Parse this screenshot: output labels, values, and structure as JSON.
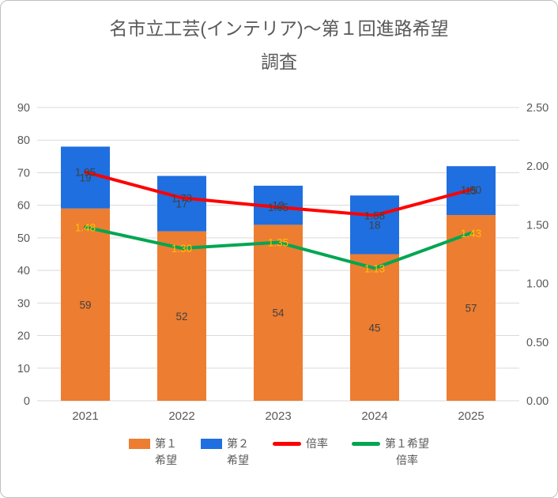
{
  "header": {
    "title_line1": "名市立工芸(インテリア)～第１回進路希望",
    "title_line2": "調査"
  },
  "colors": {
    "grid": "#D9D9D9",
    "axis_text": "#595959",
    "data_label": "#404040",
    "background": "#FFFFFF",
    "border": "#BFBFBF"
  },
  "chart_data": {
    "type": "combo",
    "title": "名市立工芸(インテリア)～第１回進路希望調査",
    "categories": [
      "2021",
      "2022",
      "2023",
      "2024",
      "2025"
    ],
    "series": [
      {
        "key": "first_choice",
        "name": "第１希望",
        "type": "bar",
        "stacked": true,
        "axis": "left",
        "color": "#ED7D31",
        "label_color": "#404040",
        "values": [
          59,
          52,
          54,
          45,
          57
        ]
      },
      {
        "key": "second_choice",
        "name": "第２希望",
        "type": "bar",
        "stacked": true,
        "axis": "left",
        "color": "#1F6FE0",
        "label_color": "#404040",
        "values": [
          19,
          17,
          12,
          18,
          15
        ]
      },
      {
        "key": "rate",
        "name": "倍率",
        "type": "line",
        "axis": "right",
        "color": "#FF0000",
        "label_color": "#404040",
        "values": [
          1.95,
          1.73,
          1.65,
          1.58,
          1.8
        ]
      },
      {
        "key": "first_choice_rate",
        "name": "第１希望倍率",
        "type": "line",
        "axis": "right",
        "color": "#00A651",
        "label_color": "#FFC000",
        "values": [
          1.48,
          1.3,
          1.35,
          1.13,
          1.43
        ]
      }
    ],
    "left_axis": {
      "min": 0,
      "max": 90,
      "step": 10
    },
    "right_axis": {
      "min": 0,
      "max": 2.5,
      "step": 0.5
    },
    "grid": true,
    "legend_position": "bottom"
  },
  "legend": {
    "items": [
      {
        "key": "first_choice",
        "lines": [
          "第１",
          "希望"
        ],
        "swatch": "rect",
        "color": "#ED7D31"
      },
      {
        "key": "second_choice",
        "lines": [
          "第２",
          "希望"
        ],
        "swatch": "rect",
        "color": "#1F6FE0"
      },
      {
        "key": "rate",
        "lines": [
          "倍率"
        ],
        "swatch": "line",
        "color": "#FF0000"
      },
      {
        "key": "first_choice_rate",
        "lines": [
          "第１希望",
          "倍率"
        ],
        "swatch": "line",
        "color": "#00A651"
      }
    ]
  }
}
